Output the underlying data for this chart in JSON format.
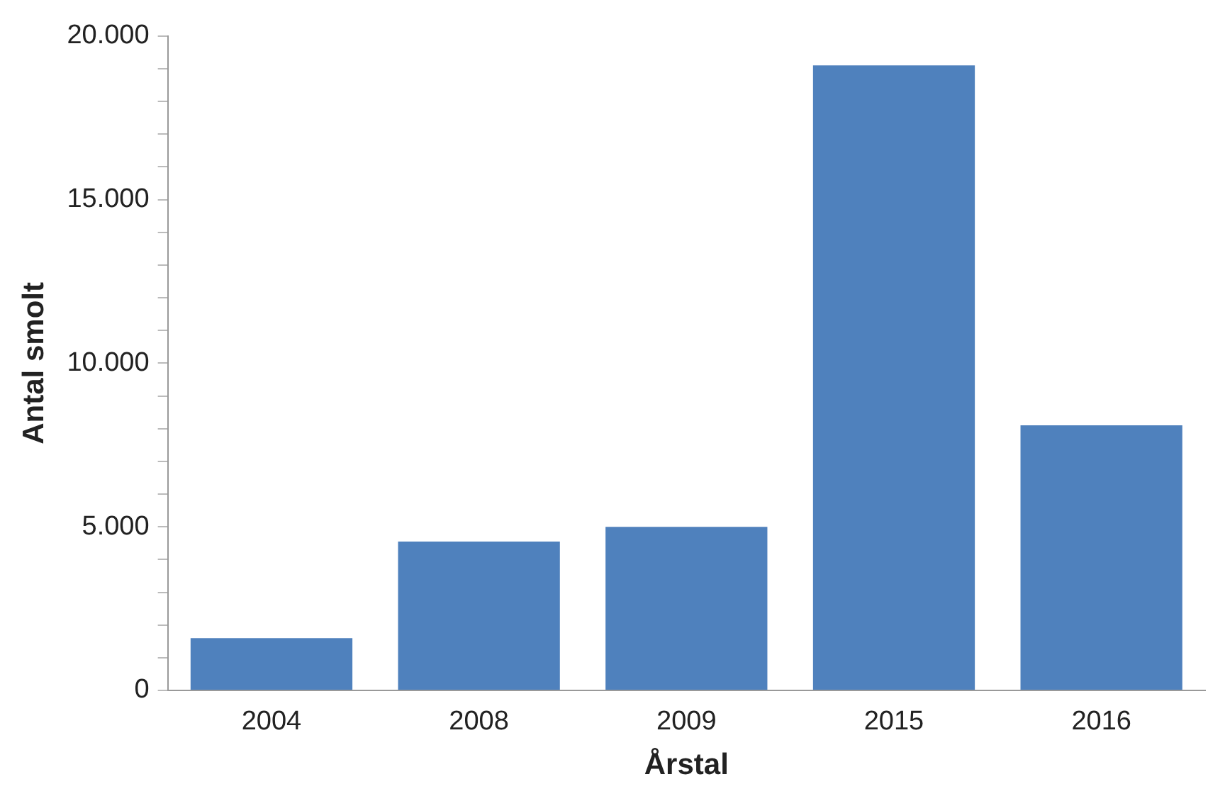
{
  "chart_data": {
    "type": "bar",
    "xlabel": "Årstal",
    "ylabel": "Antal smolt",
    "categories": [
      "2004",
      "2008",
      "2009",
      "2015",
      "2016"
    ],
    "values": [
      1600,
      4550,
      5000,
      19100,
      8100
    ],
    "color": "#4f81bd",
    "ylim": [
      0,
      20000
    ],
    "yticks": [
      {
        "value": 0,
        "label": "0"
      },
      {
        "value": 1000,
        "label": null
      },
      {
        "value": 2000,
        "label": null
      },
      {
        "value": 3000,
        "label": null
      },
      {
        "value": 4000,
        "label": null
      },
      {
        "value": 5000,
        "label": "5.000"
      },
      {
        "value": 6000,
        "label": null
      },
      {
        "value": 7000,
        "label": null
      },
      {
        "value": 8000,
        "label": null
      },
      {
        "value": 9000,
        "label": null
      },
      {
        "value": 10000,
        "label": "10.000"
      },
      {
        "value": 11000,
        "label": null
      },
      {
        "value": 12000,
        "label": null
      },
      {
        "value": 13000,
        "label": null
      },
      {
        "value": 14000,
        "label": null
      },
      {
        "value": 15000,
        "label": "15.000"
      },
      {
        "value": 16000,
        "label": null
      },
      {
        "value": 17000,
        "label": null
      },
      {
        "value": 18000,
        "label": null
      },
      {
        "value": 19000,
        "label": null
      },
      {
        "value": 20000,
        "label": "20.000"
      }
    ],
    "grid": false,
    "legend": false
  }
}
